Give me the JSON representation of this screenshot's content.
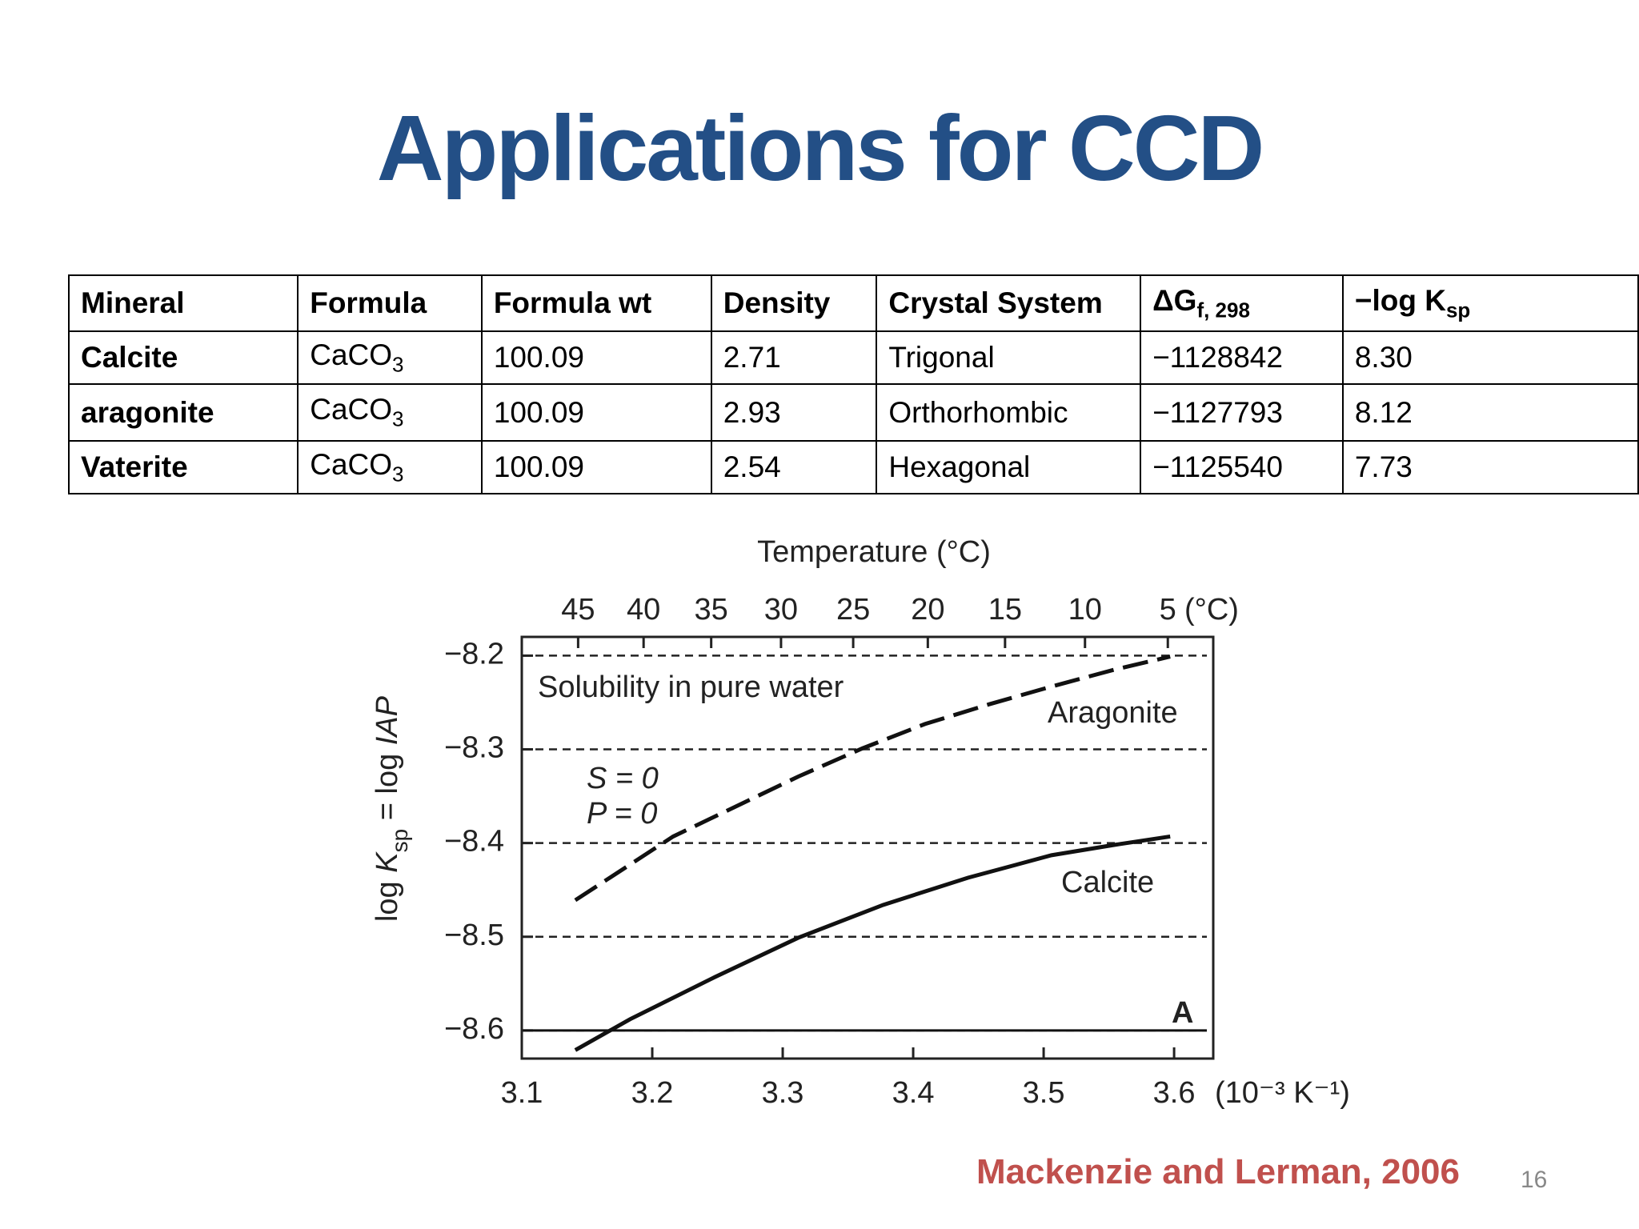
{
  "title": "Applications for CCD",
  "table": {
    "header": [
      "Mineral",
      "Formula",
      "Formula wt",
      "Density",
      "Crystal System",
      {
        "text": "ΔG",
        "sub": "f, 298"
      },
      {
        "text": "−log K",
        "sub": "sp"
      }
    ],
    "rows": [
      [
        "Calcite",
        {
          "text": "CaCO",
          "sub": "3"
        },
        "100.09",
        "2.71",
        "Trigonal",
        "−1128842",
        "8.30"
      ],
      [
        "aragonite",
        {
          "text": "CaCO",
          "sub": "3"
        },
        "100.09",
        "2.93",
        "Orthorhombic",
        "−1127793",
        "8.12"
      ],
      [
        "Vaterite",
        {
          "text": "CaCO",
          "sub": "3"
        },
        "100.09",
        "2.54",
        "Hexagonal",
        "−1125540",
        "7.73"
      ]
    ]
  },
  "chart_data": {
    "type": "line",
    "x2label": "Temperature  (°C)",
    "x2unit": "(°C)",
    "xlabel": "(10⁻³ K⁻¹)",
    "ylabel": [
      "log ",
      "K",
      "sp",
      " = log ",
      "IAP"
    ],
    "xlim": [
      3.1,
      3.63
    ],
    "ylim": [
      -8.63,
      -8.18
    ],
    "xticks": [
      3.1,
      3.2,
      3.3,
      3.4,
      3.5,
      3.6
    ],
    "x2ticks": [
      45,
      40,
      35,
      30,
      25,
      20,
      15,
      10,
      5
    ],
    "yticks": [
      {
        "value": -8.2,
        "label": "−8.2"
      },
      {
        "value": -8.3,
        "label": "−8.3"
      },
      {
        "value": -8.4,
        "label": "−8.4"
      },
      {
        "value": -8.5,
        "label": "−8.5"
      },
      {
        "value": -8.6,
        "label": "−8.6"
      }
    ],
    "grid": true,
    "grid_style": "dashed",
    "hlines": [
      -8.6
    ],
    "series": [
      {
        "name": "Aragonite",
        "color": "#111111",
        "style": "dashed",
        "x": [
          3.141,
          3.216,
          3.264,
          3.312,
          3.361,
          3.409,
          3.458,
          3.506,
          3.554,
          3.597
        ],
        "values": [
          -8.461,
          -8.393,
          -8.361,
          -8.329,
          -8.299,
          -8.273,
          -8.252,
          -8.233,
          -8.215,
          -8.201
        ]
      },
      {
        "name": "Calcite",
        "color": "#111111",
        "style": "solid",
        "x": [
          3.141,
          3.183,
          3.248,
          3.312,
          3.377,
          3.442,
          3.506,
          3.554,
          3.597
        ],
        "values": [
          -8.621,
          -8.588,
          -8.543,
          -8.501,
          -8.466,
          -8.437,
          -8.413,
          -8.402,
          -8.393
        ]
      }
    ],
    "annotations": [
      "Solubility in pure water",
      "S = 0",
      "P = 0"
    ],
    "panel_label": "A"
  },
  "citation": "Mackenzie and Lerman, 2006",
  "page_number": "16"
}
